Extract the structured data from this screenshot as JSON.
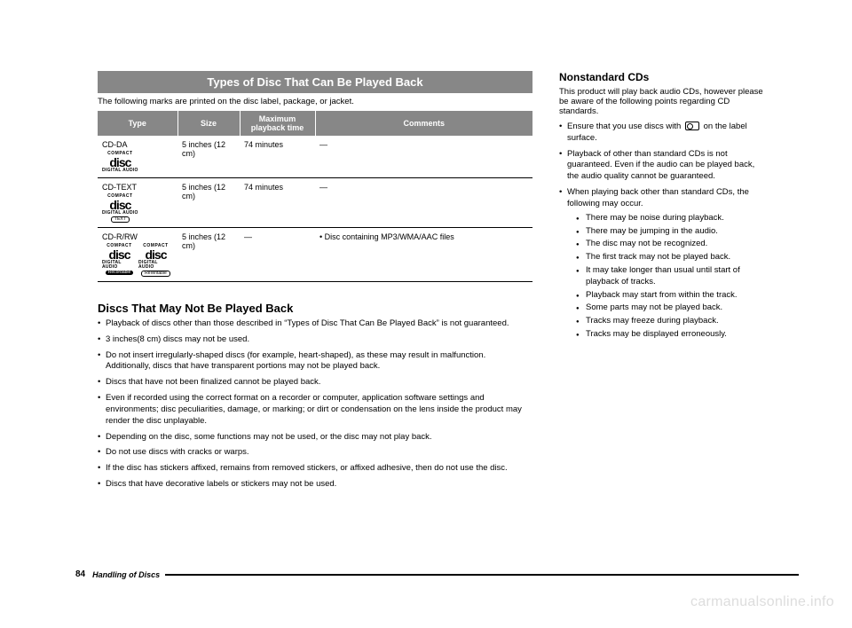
{
  "banner": "Types of Disc That Can Be Played Back",
  "banner_sub": "The following marks are printed on the disc label, package, or jacket.",
  "table": {
    "headers": [
      "Type",
      "Size",
      "Maximum playback time",
      "Comments"
    ],
    "rows": [
      {
        "type": "CD-DA",
        "logos": [
          "DA"
        ],
        "size": "5 inches (12 cm)",
        "max": "74 minutes",
        "comments": "—"
      },
      {
        "type": "CD-TEXT",
        "logos": [
          "TEXT"
        ],
        "size": "5 inches (12 cm)",
        "max": "74 minutes",
        "comments": "—"
      },
      {
        "type": "CD-R/RW",
        "logos": [
          "R",
          "RW"
        ],
        "size": "5 inches (12 cm)",
        "max": "—",
        "comments": "•  Disc containing MP3/WMA/AAC files"
      }
    ]
  },
  "left_heading": "Discs That May Not Be Played Back",
  "left_bullets": [
    "Playback of discs other than those described in “Types of Disc That Can Be Played Back” is not guaranteed.",
    "3 inches(8 cm) discs may not be used.",
    "Do not insert irregularly-shaped discs (for example, heart-shaped), as these may result in malfunction.\nAdditionally, discs that have transparent portions may not be played back.",
    "Discs that have not been finalized cannot be played back.",
    "Even if recorded using the correct format on a recorder or computer, application software settings and environments; disc peculiarities, damage, or marking; or dirt or condensation on the lens inside the product may render the disc unplayable.",
    "Depending on the disc, some functions may not be used, or the disc may not play back.",
    "Do not use discs with cracks or warps.",
    "If the disc has stickers affixed, remains from removed stickers, or affixed adhesive, then do not use the disc.",
    "Discs that have decorative labels or stickers may not be used."
  ],
  "right_heading": "Nonstandard CDs",
  "right_intro": "This product will play back audio CDs, however please be aware of the following points regarding CD standards.",
  "right_bullet1_a": "Ensure that you use discs with",
  "right_bullet1_b": "on the label surface.",
  "right_bullet2": "Playback of other than standard CDs is not guaranteed. Even if the audio can be played back, the audio quality cannot be guaranteed.",
  "right_bullet3": "When playing back other than standard CDs, the following may occur.",
  "right_sub": [
    "There may be noise during playback.",
    "There may be jumping in the audio.",
    "The disc may not be recognized.",
    "The first track may not be played back.",
    "It may take longer than usual until start of playback of tracks.",
    "Playback may start from within the track.",
    "Some parts may not be played back.",
    "Tracks may freeze during playback.",
    "Tracks may be displayed erroneously."
  ],
  "footer": {
    "page": "84",
    "title": "Handling of Discs"
  },
  "watermark": "carmanualsonline.info",
  "colors": {
    "banner_bg": "#878787",
    "banner_fg": "#ffffff"
  }
}
